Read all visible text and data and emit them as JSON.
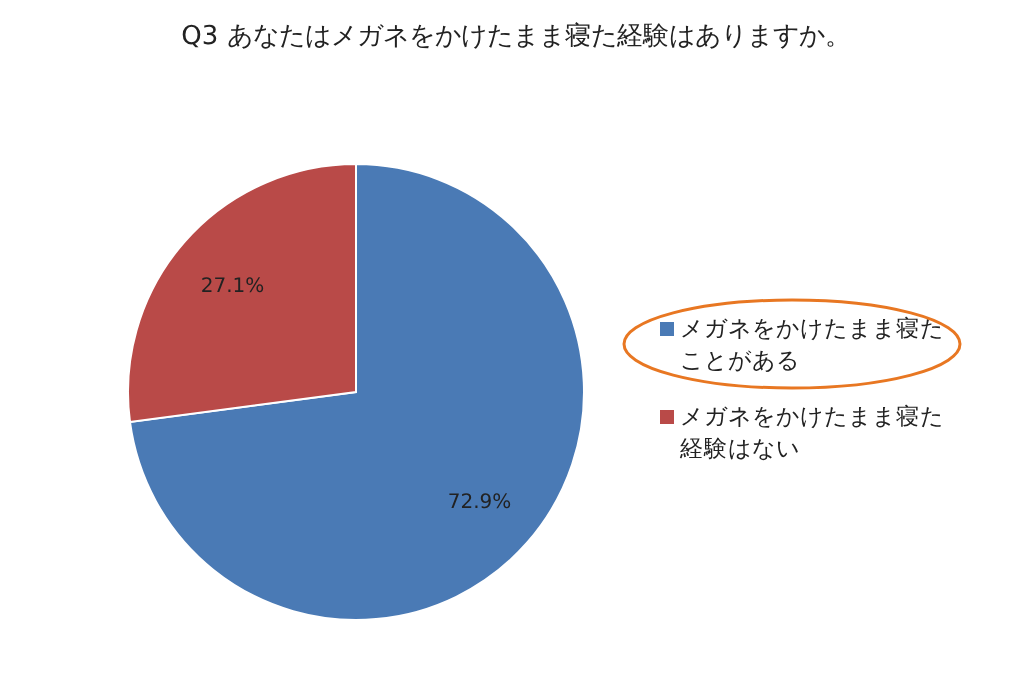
{
  "chart_data": {
    "type": "pie",
    "title": "Q3 あなたはメガネをかけたまま寝た経験はありますか。",
    "categories": [
      "メガネをかけたまま寝たことがある",
      "メガネをかけたまま寝た経験はない"
    ],
    "values": [
      72.9,
      27.1
    ],
    "colors": [
      "#4a7ab5",
      "#b94a48"
    ],
    "value_labels": [
      "72.9%",
      "27.1%"
    ],
    "legend": "right"
  }
}
